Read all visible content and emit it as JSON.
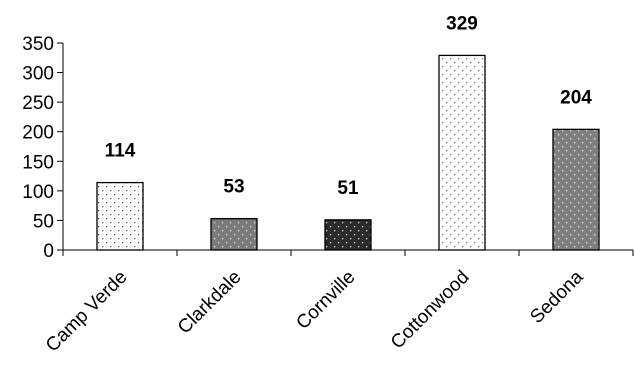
{
  "chart_data": {
    "type": "bar",
    "title": "",
    "xlabel": "",
    "ylabel": "",
    "categories": [
      "Camp Verde",
      "Clarkdale",
      "Cornville",
      "Cottonwood",
      "Sedona"
    ],
    "values": [
      114,
      53,
      51,
      329,
      204
    ],
    "ylim": [
      0,
      350
    ],
    "yticks": [
      0,
      50,
      100,
      150,
      200,
      250,
      300,
      350
    ],
    "grid": false,
    "legend": "none",
    "bar_styles": [
      {
        "bg": "#ffffff",
        "dot": "#555555"
      },
      {
        "bg": "#7a7a7a",
        "dot": "#e0e0e0"
      },
      {
        "bg": "#2b2b2b",
        "dot": "#d0d0d0"
      },
      {
        "bg": "#ffffff",
        "dot": "#777777"
      },
      {
        "bg": "#7f7f7f",
        "dot": "#e6e6e6"
      }
    ]
  }
}
